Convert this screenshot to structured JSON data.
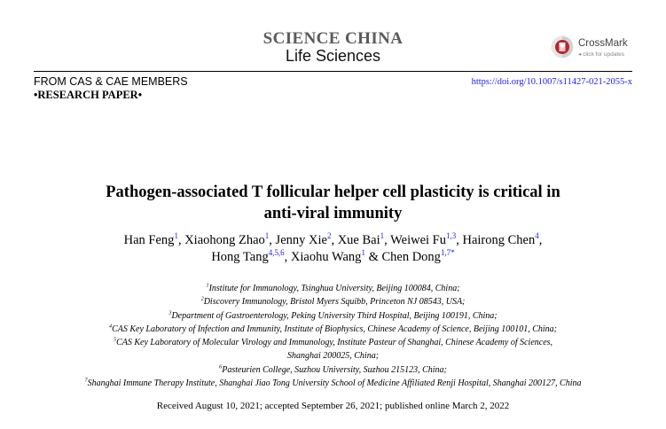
{
  "header": {
    "journal_title": "SCIENCE CHINA",
    "journal_subtitle": "Life Sciences",
    "crossmark": {
      "name": "CrossMark",
      "sub": "click for updates",
      "icon": "crossmark-icon"
    },
    "section": "FROM CAS & CAE MEMBERS",
    "paper_type": "•RESEARCH PAPER•",
    "doi": "https://doi.org/10.1007/s11427-021-2055-x"
  },
  "title_lines": [
    "Pathogen-associated T follicular helper cell plasticity is critical in",
    "anti-viral immunity"
  ],
  "authors": [
    [
      {
        "name": "Han Feng",
        "sup": "1",
        "sep": ", "
      },
      {
        "name": "Xiaohong Zhao",
        "sup": "1",
        "sep": ", "
      },
      {
        "name": "Jenny Xie",
        "sup": "2",
        "sep": ", "
      },
      {
        "name": "Xue Bai",
        "sup": "1",
        "sep": ", "
      },
      {
        "name": "Weiwei Fu",
        "sup": "1,3",
        "sep": ", "
      },
      {
        "name": "Hairong Chen",
        "sup": "4",
        "sep": ","
      }
    ],
    [
      {
        "name": "Hong Tang",
        "sup": "4,5,6",
        "sep": ", "
      },
      {
        "name": "Xiaohu Wang",
        "sup": "1",
        "sep": " & "
      },
      {
        "name": "Chen Dong",
        "sup": "1,7*",
        "sep": ""
      }
    ]
  ],
  "affiliations": [
    {
      "num": "1",
      "text": "Institute for Immunology, Tsinghua University, Beijing 100084, China;"
    },
    {
      "num": "2",
      "text": "Discovery Immunology, Bristol Myers Squibb, Princeton NJ 08543, USA;"
    },
    {
      "num": "3",
      "text": "Department of Gastroenterology, Peking University Third Hospital, Beijing 100191, China;"
    },
    {
      "num": "4",
      "text": "CAS Key Laboratory of Infection and Immunity, Institute of Biophysics, Chinese Academy of Science, Beijing 100101, China;"
    },
    {
      "num": "5",
      "text": "CAS Key Laboratory of Molecular Virology and Immunology, Institute Pasteur of Shanghai, Chinese Academy of Sciences,"
    },
    {
      "num": "",
      "text": "Shanghai 200025, China;"
    },
    {
      "num": "6",
      "text": "Pasteurien College, Suzhou University, Suzhou 215123, China;"
    },
    {
      "num": "7",
      "text": "Shanghai Immune Therapy Institute, Shanghai Jiao Tong University School of Medicine Affiliated Renji Hospital, Shanghai 200127, China"
    }
  ],
  "received": "Received August 10, 2021; accepted September 26, 2021; published online March 2, 2022"
}
